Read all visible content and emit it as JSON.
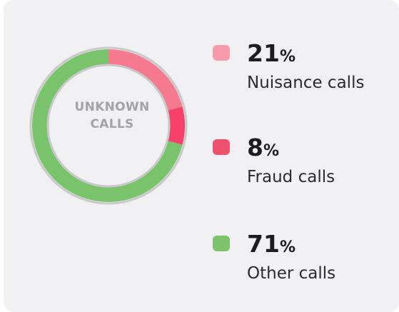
{
  "chart_data": {
    "type": "pie",
    "center_label": "UNKNOWN CALLS",
    "categories": [
      "Nuisance calls",
      "Fraud calls",
      "Other calls"
    ],
    "values": [
      21,
      8,
      71
    ],
    "value_labels": [
      "21%",
      "8%",
      "71%"
    ],
    "colors": [
      "#f5798f",
      "#f63f69",
      "#79c46a"
    ],
    "legend_colors": [
      "#f79bab",
      "#f0516f",
      "#7dc36c"
    ],
    "legend": "right"
  }
}
